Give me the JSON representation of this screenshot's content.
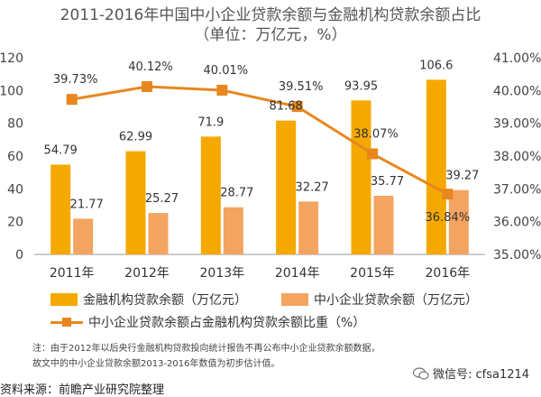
{
  "title_line1": "2011-2016年中国中小企业贷款余额与金融机构贷款余额占比",
  "title_line2": "（单位：万亿元，%）",
  "chart_data": {
    "type": "bar",
    "categories": [
      "2011年",
      "2012年",
      "2013年",
      "2014年",
      "2015年",
      "2016年"
    ],
    "series": [
      {
        "name": "金融机构贷款余额（万亿元）",
        "type": "bar",
        "axis": "left",
        "color": "#F5A900",
        "values": [
          54.79,
          62.99,
          71.9,
          81.68,
          93.95,
          106.6
        ],
        "labels": [
          "54.79",
          "62.99",
          "71.9",
          "81.68",
          "93.95",
          "106.6"
        ]
      },
      {
        "name": "中小企业贷款余额（万亿元）",
        "type": "bar",
        "axis": "left",
        "color": "#F3A460",
        "values": [
          21.77,
          25.27,
          28.77,
          32.27,
          35.77,
          39.27
        ],
        "labels": [
          "21.77",
          "25.27",
          "28.77",
          "32.27",
          "35.77",
          "39.27"
        ]
      },
      {
        "name": "中小企业贷款余额占金融机构贷款余额比重（%）",
        "type": "line",
        "axis": "right",
        "color": "#E8871E",
        "values": [
          39.73,
          40.12,
          40.01,
          39.51,
          38.07,
          36.84
        ],
        "labels": [
          "39.73%",
          "40.12%",
          "40.01%",
          "39.51%",
          "38.07%",
          "36.84%"
        ]
      }
    ],
    "left_axis": {
      "min": 0,
      "max": 120,
      "ticks": [
        "0",
        "20",
        "40",
        "60",
        "80",
        "100",
        "120"
      ]
    },
    "right_axis": {
      "min": 35,
      "max": 41,
      "ticks": [
        "35.00%",
        "36.00%",
        "37.00%",
        "38.00%",
        "39.00%",
        "40.00%",
        "41.00%"
      ]
    },
    "grid": false,
    "legend": "bottom"
  },
  "note_line1": "注：由于2012年以后央行金融机构贷款投向统计报告不再公布中小企业贷款余额数据，",
  "note_line2": "故文中的中小企业贷款余额2013-2016年数值为初步估计值。",
  "source": "资料来源：前瞻产业研究院整理",
  "watermark": "微信号: cfsa1214"
}
